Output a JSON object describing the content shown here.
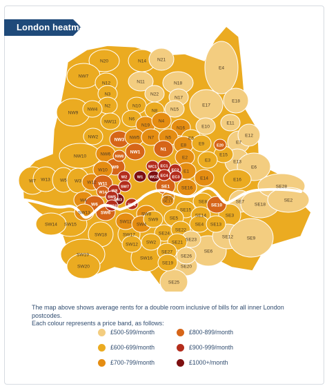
{
  "header": {
    "title": "London heatmap"
  },
  "colors": {
    "band_500": "#f3cd80",
    "band_600": "#ebab21",
    "band_700": "#e58d12",
    "band_800": "#d66518",
    "band_900": "#b42d1c",
    "band_1000": "#7d0f10",
    "river": "#ffffff",
    "banner": "#1f4a7a",
    "text": "#2f4b6e"
  },
  "description": {
    "line1": "The map above shows average rents for a double room inclusive of bills for all inner London postcodes.",
    "line2": "Each colour represents a price band, as follows:"
  },
  "legend": [
    {
      "label": "£500-599/month",
      "color": "#f3cd80"
    },
    {
      "label": "£600-699/month",
      "color": "#ebab21"
    },
    {
      "label": "£700-799/month",
      "color": "#e58d12"
    },
    {
      "label": "£800-899/month",
      "color": "#d66518"
    },
    {
      "label": "£900-999/month",
      "color": "#b42d1c"
    },
    {
      "label": "£1000+/month",
      "color": "#7d0f10"
    }
  ],
  "districts": [
    {
      "code": "N20",
      "band": "band_600"
    },
    {
      "code": "N14",
      "band": "band_600"
    },
    {
      "code": "N21",
      "band": "band_500"
    },
    {
      "code": "E4",
      "band": "band_500"
    },
    {
      "code": "NW7",
      "band": "band_600"
    },
    {
      "code": "N12",
      "band": "band_600"
    },
    {
      "code": "N11",
      "band": "band_500"
    },
    {
      "code": "N18",
      "band": "band_500"
    },
    {
      "code": "N3",
      "band": "band_600"
    },
    {
      "code": "N22",
      "band": "band_500"
    },
    {
      "code": "N17",
      "band": "band_500"
    },
    {
      "code": "N2",
      "band": "band_600"
    },
    {
      "code": "N10",
      "band": "band_600"
    },
    {
      "code": "E17",
      "band": "band_500"
    },
    {
      "code": "E18",
      "band": "band_500"
    },
    {
      "code": "NW9",
      "band": "band_600"
    },
    {
      "code": "NW4",
      "band": "band_600"
    },
    {
      "code": "N8",
      "band": "band_600"
    },
    {
      "code": "N15",
      "band": "band_500"
    },
    {
      "code": "NW11",
      "band": "band_600"
    },
    {
      "code": "N6",
      "band": "band_600"
    },
    {
      "code": "N19",
      "band": "band_700"
    },
    {
      "code": "N4",
      "band": "band_700"
    },
    {
      "code": "N16",
      "band": "band_700"
    },
    {
      "code": "E10",
      "band": "band_500"
    },
    {
      "code": "E11",
      "band": "band_500"
    },
    {
      "code": "NW2",
      "band": "band_600"
    },
    {
      "code": "NW3",
      "band": "band_800"
    },
    {
      "code": "NW5",
      "band": "band_700"
    },
    {
      "code": "N7",
      "band": "band_700"
    },
    {
      "code": "N5",
      "band": "band_700"
    },
    {
      "code": "E5",
      "band": "band_600"
    },
    {
      "code": "E7",
      "band": "band_500"
    },
    {
      "code": "E12",
      "band": "band_500"
    },
    {
      "code": "NW6",
      "band": "band_700"
    },
    {
      "code": "NW8",
      "band": "band_800"
    },
    {
      "code": "NW1",
      "band": "band_800"
    },
    {
      "code": "N1",
      "band": "band_800"
    },
    {
      "code": "E8",
      "band": "band_700"
    },
    {
      "code": "E9",
      "band": "band_600"
    },
    {
      "code": "E20",
      "band": "band_800"
    },
    {
      "code": "E15",
      "band": "band_600"
    },
    {
      "code": "NW10",
      "band": "band_600"
    },
    {
      "code": "W9",
      "band": "band_800"
    },
    {
      "code": "W2",
      "band": "band_900"
    },
    {
      "code": "W1",
      "band": "band_1000"
    },
    {
      "code": "WC1",
      "band": "band_900"
    },
    {
      "code": "EC1",
      "band": "band_900"
    },
    {
      "code": "E2",
      "band": "band_700"
    },
    {
      "code": "E3",
      "band": "band_600"
    },
    {
      "code": "E13",
      "band": "band_500"
    },
    {
      "code": "E6",
      "band": "band_500"
    },
    {
      "code": "W7",
      "band": "band_600"
    },
    {
      "code": "W13",
      "band": "band_600"
    },
    {
      "code": "W5",
      "band": "band_600"
    },
    {
      "code": "W3",
      "band": "band_600"
    },
    {
      "code": "W12",
      "band": "band_700"
    },
    {
      "code": "W10",
      "band": "band_700"
    },
    {
      "code": "W11",
      "band": "band_800"
    },
    {
      "code": "WC2",
      "band": "band_1000"
    },
    {
      "code": "EC4",
      "band": "band_900"
    },
    {
      "code": "EC2",
      "band": "band_900"
    },
    {
      "code": "EC3",
      "band": "band_900"
    },
    {
      "code": "E1",
      "band": "band_700"
    },
    {
      "code": "E14",
      "band": "band_700"
    },
    {
      "code": "E16",
      "band": "band_600"
    },
    {
      "code": "W4",
      "band": "band_700"
    },
    {
      "code": "W14",
      "band": "band_800"
    },
    {
      "code": "W8",
      "band": "band_900"
    },
    {
      "code": "SW7",
      "band": "band_900"
    },
    {
      "code": "SW1",
      "band": "band_900"
    },
    {
      "code": "SW3",
      "band": "band_1000"
    },
    {
      "code": "SW5",
      "band": "band_900"
    },
    {
      "code": "SW10",
      "band": "band_900"
    },
    {
      "code": "W6",
      "band": "band_800"
    },
    {
      "code": "SE1",
      "band": "band_800"
    },
    {
      "code": "SE16",
      "band": "band_700"
    },
    {
      "code": "SE8",
      "band": "band_600"
    },
    {
      "code": "SE10",
      "band": "band_800"
    },
    {
      "code": "SE7",
      "band": "band_500"
    },
    {
      "code": "SE18",
      "band": "band_500"
    },
    {
      "code": "SE28",
      "band": "band_500"
    },
    {
      "code": "SE2",
      "band": "band_500"
    },
    {
      "code": "SW13",
      "band": "band_700"
    },
    {
      "code": "SW6",
      "band": "band_800"
    },
    {
      "code": "SW11",
      "band": "band_700"
    },
    {
      "code": "SW8",
      "band": "band_700"
    },
    {
      "code": "SE11",
      "band": "band_700"
    },
    {
      "code": "SE17",
      "band": "band_700"
    },
    {
      "code": "SE15",
      "band": "band_600"
    },
    {
      "code": "SE14",
      "band": "band_600"
    },
    {
      "code": "SE4",
      "band": "band_600"
    },
    {
      "code": "SE13",
      "band": "band_600"
    },
    {
      "code": "SE3",
      "band": "band_600"
    },
    {
      "code": "SE5",
      "band": "band_600"
    },
    {
      "code": "SW15",
      "band": "band_600"
    },
    {
      "code": "SW18",
      "band": "band_600"
    },
    {
      "code": "SW4",
      "band": "band_700"
    },
    {
      "code": "SW9",
      "band": "band_600"
    },
    {
      "code": "SE24",
      "band": "band_600"
    },
    {
      "code": "SE22",
      "band": "band_600"
    },
    {
      "code": "SE23",
      "band": "band_500"
    },
    {
      "code": "SE6",
      "band": "band_500"
    },
    {
      "code": "SE12",
      "band": "band_500"
    },
    {
      "code": "SE9",
      "band": "band_500"
    },
    {
      "code": "SW14",
      "band": "band_600"
    },
    {
      "code": "SW17",
      "band": "band_600"
    },
    {
      "code": "SW12",
      "band": "band_600"
    },
    {
      "code": "SW2",
      "band": "band_600"
    },
    {
      "code": "SE21",
      "band": "band_600"
    },
    {
      "code": "SW19",
      "band": "band_600"
    },
    {
      "code": "SW16",
      "band": "band_600"
    },
    {
      "code": "SE27",
      "band": "band_600"
    },
    {
      "code": "SE26",
      "band": "band_500"
    },
    {
      "code": "SW20",
      "band": "band_600"
    },
    {
      "code": "SE19",
      "band": "band_600"
    },
    {
      "code": "SE20",
      "band": "band_500"
    },
    {
      "code": "SE25",
      "band": "band_500"
    }
  ]
}
